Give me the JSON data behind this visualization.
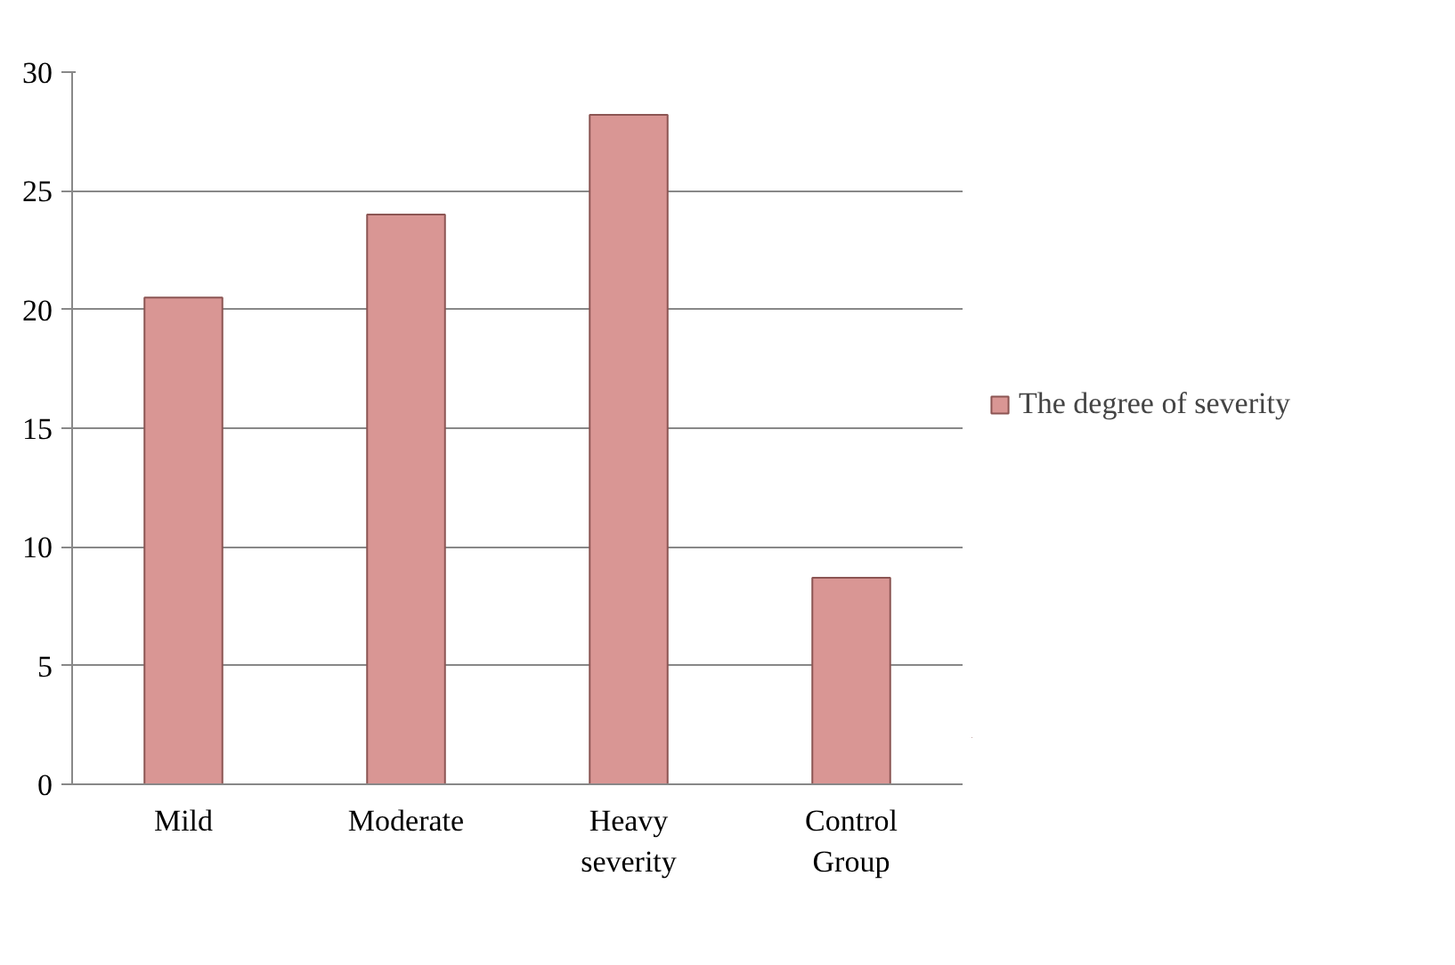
{
  "chart_data": {
    "type": "bar",
    "categories": [
      "Mild",
      "Moderate",
      "Heavy severity",
      "Control Group"
    ],
    "series": [
      {
        "name": "The degree of severity",
        "color": "#d99694",
        "values": [
          20.5,
          24,
          28.2,
          8.7
        ]
      }
    ],
    "ylim": [
      0,
      30
    ],
    "yticks": [
      0,
      5,
      10,
      15,
      20,
      25,
      30
    ],
    "grid": "y",
    "legend": "right"
  }
}
